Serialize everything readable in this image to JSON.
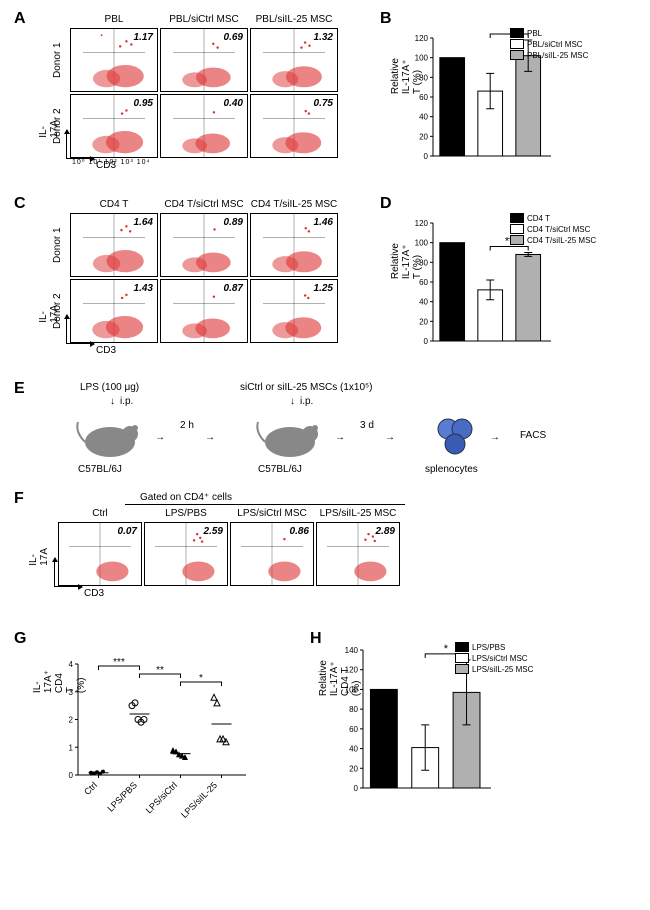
{
  "panelA": {
    "label": "A",
    "cols": [
      "PBL",
      "PBL/siCtrl MSC",
      "PBL/siIL-25 MSC"
    ],
    "rows": [
      "Donor 1",
      "Donor 2"
    ],
    "values": [
      [
        "1.17",
        "0.69",
        "1.32"
      ],
      [
        "0.95",
        "0.40",
        "0.75"
      ]
    ],
    "yaxis": "IL-17A",
    "xaxis": "CD3",
    "xticks": "10⁰  10¹  10²  10³  10⁴"
  },
  "panelB": {
    "label": "B",
    "yaxis": "Relative IL-17A⁺ T (%)",
    "legend": [
      "PBL",
      "PBL/siCtrl MSC",
      "PBL/siIL-25 MSC"
    ],
    "colors": [
      "#000000",
      "#ffffff",
      "#b0b0b0"
    ],
    "values": [
      100,
      66,
      102
    ],
    "errs": [
      0,
      18,
      16
    ],
    "ymax": 120,
    "ytick": 20,
    "sig": "*"
  },
  "panelC": {
    "label": "C",
    "cols": [
      "CD4 T",
      "CD4 T/siCtrl MSC",
      "CD4 T/siIL-25 MSC"
    ],
    "rows": [
      "Donor 1",
      "Donor 2"
    ],
    "values": [
      [
        "1.64",
        "0.89",
        "1.46"
      ],
      [
        "1.43",
        "0.87",
        "1.25"
      ]
    ],
    "yaxis": "IL-17A",
    "xaxis": "CD3"
  },
  "panelD": {
    "label": "D",
    "yaxis": "Relative IL-17A⁺ T (%)",
    "legend": [
      "CD4 T",
      "CD4 T/siCtrl MSC",
      "CD4 T/siIL-25 MSC"
    ],
    "colors": [
      "#000000",
      "#ffffff",
      "#b0b0b0"
    ],
    "values": [
      100,
      52,
      88
    ],
    "errs": [
      0,
      10,
      2
    ],
    "ymax": 120,
    "ytick": 20,
    "sig": "**"
  },
  "panelE": {
    "label": "E",
    "lps": "LPS (100 μg)",
    "msc": "siCtrl or siIL-25 MSCs (1x10⁵)",
    "ip": "i.p.",
    "strain": "C57BL/6J",
    "t1": "2 h",
    "t2": "3 d",
    "spleno": "splenocytes",
    "facs": "FACS"
  },
  "panelF": {
    "label": "F",
    "gate": "Gated on CD4⁺ cells",
    "cols": [
      "Ctrl",
      "LPS/PBS",
      "LPS/siCtrl MSC",
      "LPS/siIL-25 MSC"
    ],
    "values": [
      "0.07",
      "2.59",
      "0.86",
      "2.89"
    ],
    "yaxis": "IL-17A",
    "xaxis": "CD3"
  },
  "panelG": {
    "label": "G",
    "yaxis": "IL-17A⁺ CD4 T (%)",
    "groups": [
      "Ctrl",
      "LPS/PBS",
      "LPS/siCtrl",
      "LPS/siIL-25"
    ],
    "ymax": 4,
    "ytick": 1,
    "points": {
      "Ctrl": [
        0.08,
        0.06,
        0.1,
        0.05,
        0.12
      ],
      "LPS/PBS": [
        2.5,
        2.6,
        2.0,
        1.9,
        2.0
      ],
      "LPS/siCtrl": [
        0.9,
        0.85,
        0.75,
        0.7,
        0.65
      ],
      "LPS/siIL-25": [
        2.8,
        2.6,
        1.3,
        1.3,
        1.2
      ]
    },
    "means": [
      0.08,
      2.2,
      0.77,
      1.84
    ],
    "markers": [
      "dot",
      "circle",
      "triangle-up",
      "triangle-open"
    ],
    "sig": [
      "***",
      "**",
      "*"
    ]
  },
  "panelH": {
    "label": "H",
    "yaxis": "Relative IL-17A⁺ CD4 T (%)",
    "legend": [
      "LPS/PBS",
      "LPS/siCtrl MSC",
      "LPS/siIL-25 MSC"
    ],
    "colors": [
      "#000000",
      "#ffffff",
      "#b0b0b0"
    ],
    "values": [
      100,
      41,
      97
    ],
    "errs": [
      0,
      23,
      33
    ],
    "ymax": 140,
    "ytick": 20,
    "sig": "*"
  }
}
